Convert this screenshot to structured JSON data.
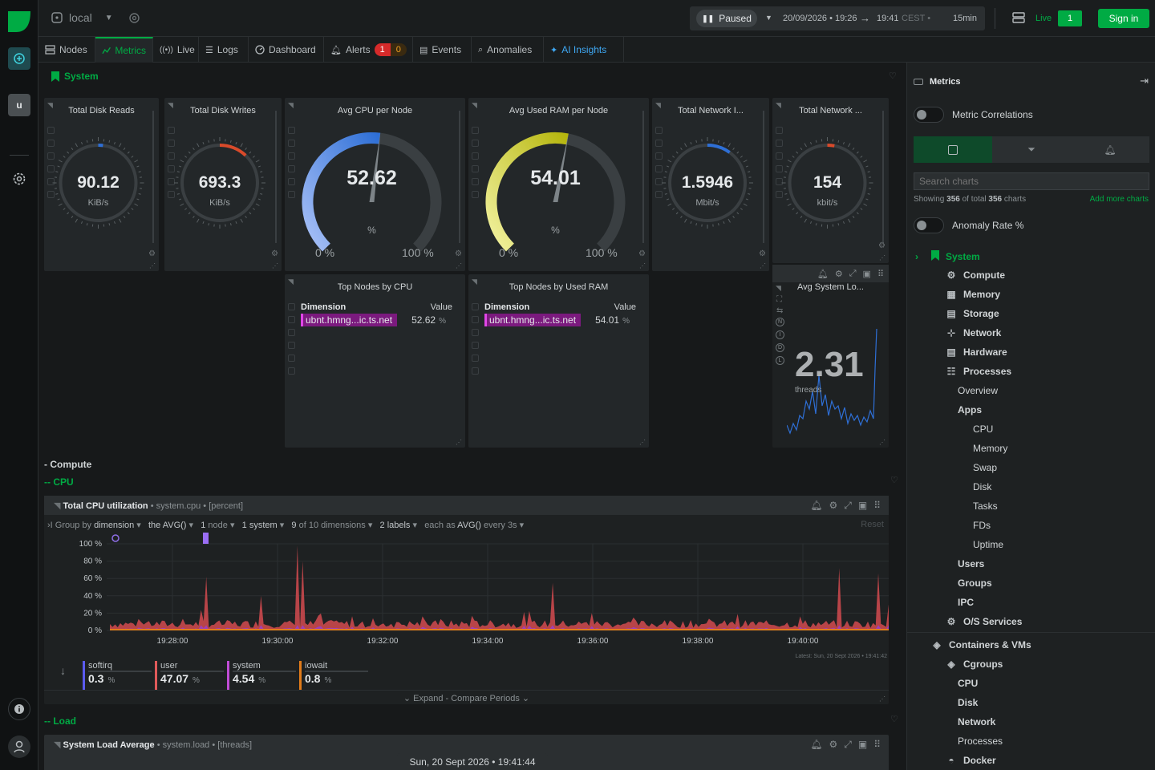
{
  "topbar": {
    "space": "local",
    "status": "Paused",
    "range": "20/09/2026 • 19:26",
    "arrow": "→",
    "range_end": "19:41",
    "tz": "CEST •",
    "duration": "15min",
    "live_label": "Live",
    "live_count": "1",
    "signin": "Sign in"
  },
  "tabs": [
    {
      "label": "Nodes"
    },
    {
      "label": "Metrics"
    },
    {
      "label": "Live"
    },
    {
      "label": "Logs"
    },
    {
      "label": "Dashboard"
    },
    {
      "label": "Alerts"
    },
    {
      "label": "Events"
    },
    {
      "label": "Anomalies"
    },
    {
      "label": "AI Insights"
    }
  ],
  "alerts": {
    "critical": "1",
    "warning": "0"
  },
  "rail": {
    "avatar": "u"
  },
  "section": {
    "title": "System"
  },
  "gauges": [
    {
      "title": "Total Disk Reads",
      "value": "90.12",
      "unit": "KiB/s",
      "fill": 0.02
    },
    {
      "title": "Total Disk Writes",
      "value": "693.3",
      "unit": "KiB/s",
      "fill": 0.12
    },
    {
      "title": "Avg CPU per Node",
      "value": "52.62",
      "unit": "%",
      "min": "0 %",
      "max": "100 %",
      "fill": 0.5262
    },
    {
      "title": "Avg Used RAM per Node",
      "value": "54.01",
      "unit": "%",
      "min": "0 %",
      "max": "100 %",
      "fill": 0.5401
    },
    {
      "title": "Total Network I...",
      "value": "1.5946",
      "unit": "Mbit/s",
      "fill": 0.1
    },
    {
      "title": "Total Network ...",
      "value": "154",
      "unit": "kbit/s",
      "fill": 0.03
    }
  ],
  "tops": [
    {
      "title": "Top Nodes by CPU",
      "dim_header": "Dimension",
      "val_header": "Value",
      "node": "ubnt.hmng...ic.ts.net",
      "value": "52.62",
      "unit": "%"
    },
    {
      "title": "Top Nodes by Used RAM",
      "dim_header": "Dimension",
      "val_header": "Value",
      "node": "ubnt.hmng...ic.ts.net",
      "value": "54.01",
      "unit": "%"
    }
  ],
  "load_card": {
    "title": "Avg System Lo...",
    "value": "2.31",
    "unit": "threads"
  },
  "load_side_letters": [
    "N",
    "I",
    "D",
    "L"
  ],
  "compute": {
    "heading": "- Compute",
    "cpu": "-- CPU",
    "load": "-- Load"
  },
  "cpu_chart": {
    "title": "Total CPU utilization",
    "context": "• system.cpu • [percent]",
    "group_by": "Group by",
    "group_val": "dimension",
    "agg": "the AVG()",
    "nodes": "1",
    "nodes_label": "node",
    "systems": "1 system",
    "dims": "9",
    "dims_label": "of 10 dimensions",
    "labels": "2 labels",
    "each": "each as",
    "each_val": "AVG()",
    "every": "every 3s",
    "reset": "Reset",
    "latest": "Latest:  Sun, 20 Sept 2026 • 19:41:42",
    "expand": "Expand - Compare Periods"
  },
  "chart_data": {
    "type": "area",
    "title": "Total CPU utilization",
    "ylabel": "percent",
    "ylim": [
      0,
      100
    ],
    "y_ticks": [
      "100 %",
      "80 %",
      "60 %",
      "40 %",
      "20 %",
      "0 %"
    ],
    "x_ticks": [
      "19:28:00",
      "19:30:00",
      "19:32:00",
      "19:34:00",
      "19:36:00",
      "19:38:00",
      "19:40:00"
    ],
    "series": [
      {
        "name": "softirq",
        "value": "0.3",
        "unit": "%",
        "color": "#5b5bf0"
      },
      {
        "name": "user",
        "value": "47.07",
        "unit": "%",
        "color": "#e05a5a"
      },
      {
        "name": "system",
        "value": "4.54",
        "unit": "%",
        "color": "#c04cd6"
      },
      {
        "name": "iowait",
        "value": "0.8",
        "unit": "%",
        "color": "#e07b1a"
      }
    ]
  },
  "load_chart": {
    "title": "System Load Average",
    "context": "• system.load • [threads]"
  },
  "footer_time": "Sun, 20 Sept 2026 • 19:41:44",
  "rpanel": {
    "title": "Metrics",
    "correlations": "Metric Correlations",
    "search_placeholder": "Search charts",
    "showing_a": "Showing ",
    "showing_n": "356",
    "showing_b": " of total ",
    "showing_t": "356",
    "showing_c": " charts",
    "add_more": "Add more charts",
    "anomaly": "Anomaly Rate %",
    "tree": [
      {
        "label": "System",
        "level": 0
      },
      {
        "label": "Compute",
        "level": 1
      },
      {
        "label": "Memory",
        "level": 1
      },
      {
        "label": "Storage",
        "level": 1
      },
      {
        "label": "Network",
        "level": 1
      },
      {
        "label": "Hardware",
        "level": 1
      },
      {
        "label": "Processes",
        "level": 1
      },
      {
        "label": "Overview",
        "level": 2
      },
      {
        "label": "Apps",
        "level": 2
      },
      {
        "label": "CPU",
        "level": 3
      },
      {
        "label": "Memory",
        "level": 3
      },
      {
        "label": "Swap",
        "level": 3
      },
      {
        "label": "Disk",
        "level": 3
      },
      {
        "label": "Tasks",
        "level": 3
      },
      {
        "label": "FDs",
        "level": 3
      },
      {
        "label": "Uptime",
        "level": 3
      },
      {
        "label": "Users",
        "level": 2
      },
      {
        "label": "Groups",
        "level": 2
      },
      {
        "label": "IPC",
        "level": 2
      },
      {
        "label": "O/S Services",
        "level": 1
      },
      {
        "label": "Containers & VMs",
        "level": 0
      },
      {
        "label": "Cgroups",
        "level": 1
      },
      {
        "label": "CPU",
        "level": 2
      },
      {
        "label": "Disk",
        "level": 2
      },
      {
        "label": "Network",
        "level": 2
      },
      {
        "label": "Processes",
        "level": 2
      },
      {
        "label": "Docker",
        "level": 1
      }
    ]
  }
}
